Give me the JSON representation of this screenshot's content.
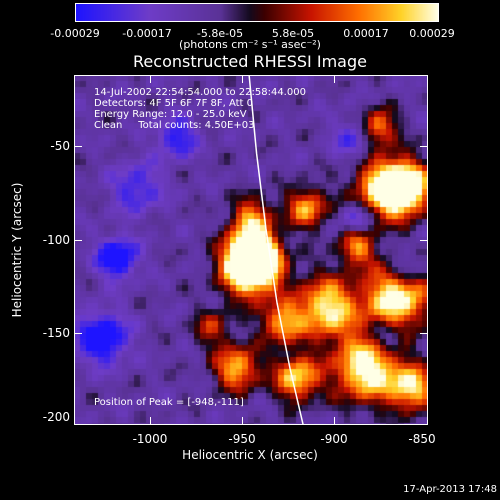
{
  "colorbar": {
    "ticks": [
      "-0.00029",
      "-0.00017",
      "-5.8e-05",
      "5.8e-05",
      "0.00017",
      "0.00029"
    ],
    "units": "(photons cm⁻² s⁻¹ asec⁻²)"
  },
  "chart_data": {
    "type": "heatmap",
    "title": "Reconstructed RHESSI Image",
    "xlabel": "Heliocentric X (arcsec)",
    "ylabel": "Heliocentric Y (arcsec)",
    "xlim": [
      -1040,
      -850
    ],
    "ylim": [
      -205,
      -18
    ],
    "xticks": [
      "-1000",
      "-950",
      "-900",
      "-850"
    ],
    "yticks": [
      "-50",
      "-100",
      "-150",
      "-200"
    ],
    "value_range": [
      -0.00029,
      0.00029
    ],
    "peak_position": [
      -948,
      -111
    ],
    "annotations": [
      "14-Jul-2002 22:54:54.000 to 22:58:44.000",
      "Detectors: 4F 5F 6F 7F 8F, Att 0",
      "Energy Range: 12.0 - 25.0 keV",
      "Clean     Total counts: 4.50E+03"
    ],
    "peak_label": "Position of Peak = [-948,-111]",
    "limb_curve": [
      [
        -946,
        -18
      ],
      [
        -942,
        -60
      ],
      [
        -937,
        -100
      ],
      [
        -931,
        -140
      ],
      [
        -924,
        -175
      ],
      [
        -917,
        -205
      ]
    ]
  },
  "timestamp": "17-Apr-2013 17:48"
}
